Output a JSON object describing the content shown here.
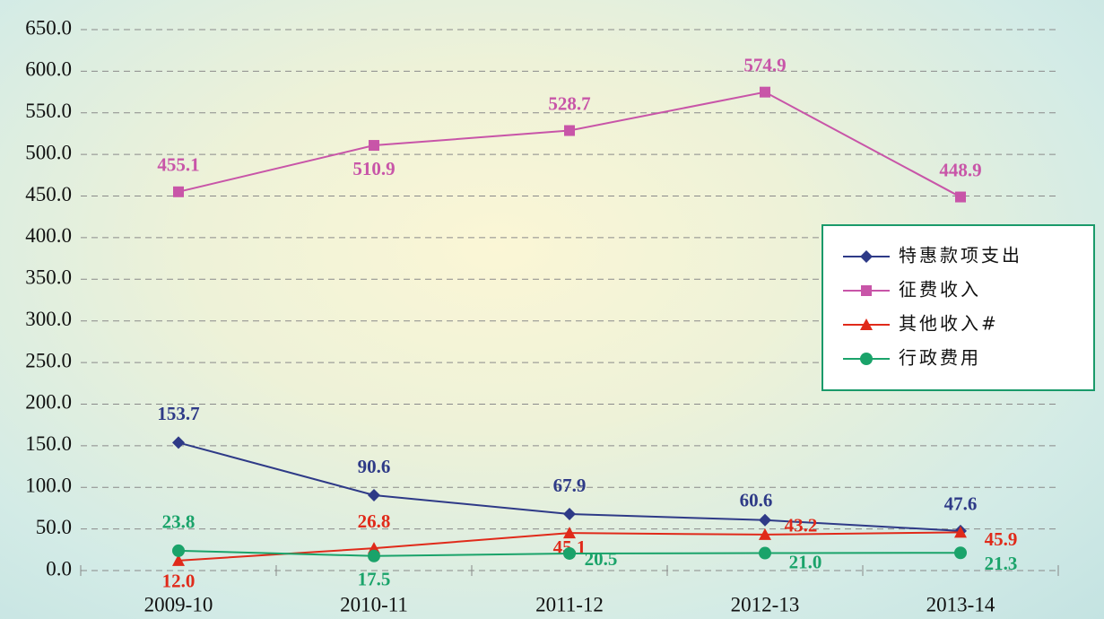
{
  "chart_data": {
    "type": "line",
    "categories": [
      "2009-10",
      "2010-11",
      "2011-12",
      "2012-13",
      "2013-14"
    ],
    "series": [
      {
        "name": "特惠款项支出",
        "color": "#2e3a87",
        "marker": "diamond",
        "values": [
          153.7,
          90.6,
          67.9,
          60.6,
          47.6
        ],
        "value_labels": [
          "153.7",
          "90.6",
          "67.9",
          "60.6",
          "47.6"
        ]
      },
      {
        "name": "征费收入",
        "color": "#c855a8",
        "marker": "square",
        "values": [
          455.1,
          510.9,
          528.7,
          574.9,
          448.9
        ],
        "value_labels": [
          "455.1",
          "510.9",
          "528.7",
          "574.9",
          "448.9"
        ]
      },
      {
        "name": "其他收入#",
        "color": "#e02a1a",
        "marker": "triangle",
        "values": [
          12.0,
          26.8,
          45.1,
          43.2,
          45.9
        ],
        "value_labels": [
          "12.0",
          "26.8",
          "45.1",
          "43.2",
          "45.9"
        ]
      },
      {
        "name": "行政费用",
        "color": "#1aa36a",
        "marker": "circle",
        "values": [
          23.8,
          17.5,
          20.5,
          21.0,
          21.3
        ],
        "value_labels": [
          "23.8",
          "17.5",
          "20.5",
          "21.0",
          "21.3"
        ]
      }
    ],
    "ylim": [
      0,
      650
    ],
    "yticks": [
      {
        "value": 0,
        "label": "0.0"
      },
      {
        "value": 50,
        "label": "50.0"
      },
      {
        "value": 100,
        "label": "100.0"
      },
      {
        "value": 150,
        "label": "150.0"
      },
      {
        "value": 200,
        "label": "200.0"
      },
      {
        "value": 250,
        "label": "250.0"
      },
      {
        "value": 300,
        "label": "300.0"
      },
      {
        "value": 350,
        "label": "350.0"
      },
      {
        "value": 400,
        "label": "400.0"
      },
      {
        "value": 450,
        "label": "450.0"
      },
      {
        "value": 500,
        "label": "500.0"
      },
      {
        "value": 550,
        "label": "550.0"
      },
      {
        "value": 600,
        "label": "600.0"
      },
      {
        "value": 650,
        "label": "650.0"
      }
    ],
    "grid": true,
    "legend": "right"
  }
}
